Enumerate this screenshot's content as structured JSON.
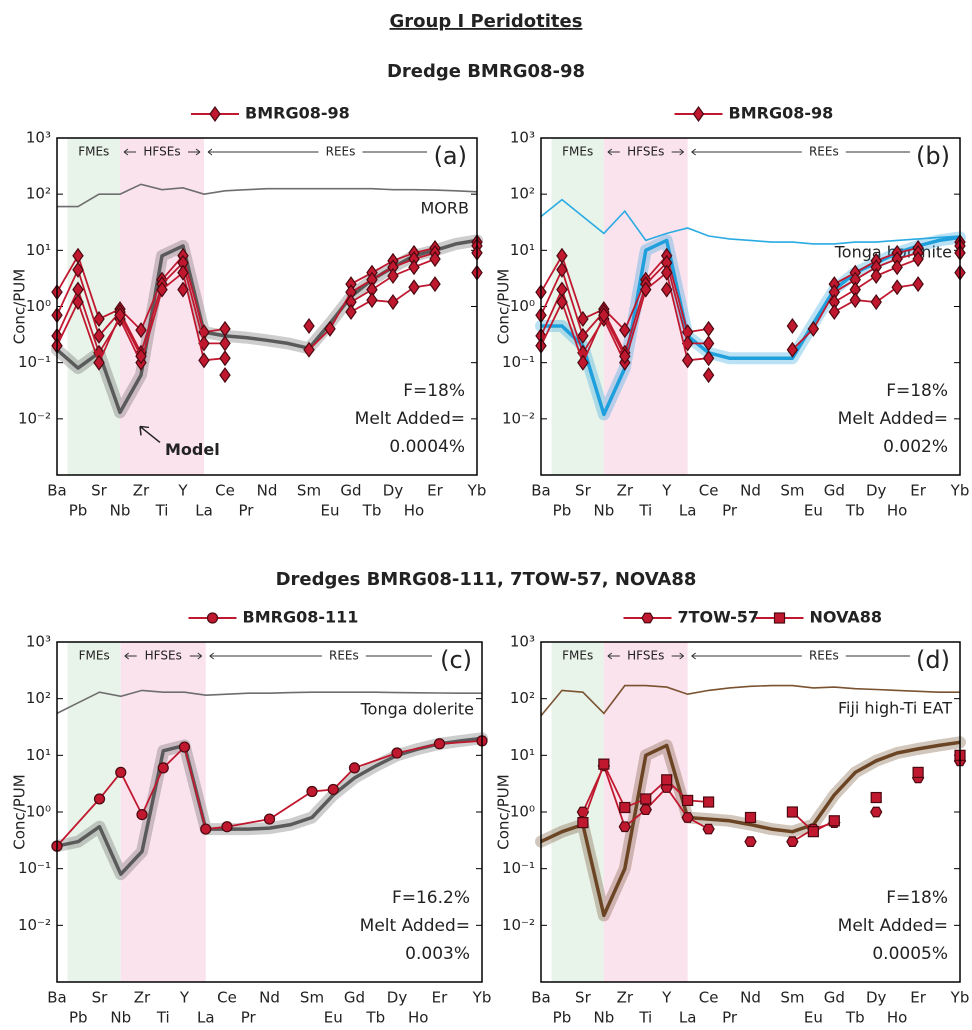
{
  "header": {
    "title": "Group I Peridotites",
    "section1": "Dredge BMRG08-98",
    "section2": "Dredges BMRG08-111, 7TOW-57, NOVA88"
  },
  "chart_data": [
    {
      "type": "line",
      "panel": "(a)",
      "y_label": "Conc/PUM",
      "log_y": true,
      "regions": [
        "FMEs",
        "HFSEs",
        "REEs"
      ],
      "categories": [
        "Ba",
        "Pb",
        "Sr",
        "Nb",
        "Zr",
        "Ti",
        "Y",
        "La",
        "Ce",
        "Pr",
        "Nd",
        null,
        "Sm",
        "Eu",
        "Gd",
        "Tb",
        "Dy",
        "Ho",
        "Er",
        null,
        "Yb"
      ],
      "ylim": [
        0.001,
        1000
      ],
      "yticks": [
        {
          "value": 1000,
          "label": "10³"
        },
        {
          "value": 100,
          "label": "10²"
        },
        {
          "value": 10,
          "label": "10¹"
        },
        {
          "value": 1,
          "label": "10⁰"
        },
        {
          "value": 0.1,
          "label": "10⁻¹"
        },
        {
          "value": 0.01,
          "label": "10⁻²"
        }
      ],
      "annotations": [
        "F=18%",
        "Melt Added=",
        "0.0004%"
      ],
      "series": [
        {
          "name": "MORB",
          "style": "line",
          "color": "#6e6e6e",
          "values": [
            60,
            60,
            100,
            100,
            150,
            120,
            130,
            100,
            115,
            120,
            125,
            125,
            125,
            125,
            125,
            125,
            120,
            120,
            118,
            115,
            110
          ]
        },
        {
          "name": "Model",
          "style": "band",
          "color": "#5a5a5a",
          "values": [
            0.17,
            0.08,
            0.15,
            0.013,
            0.06,
            8,
            12,
            0.35,
            0.3,
            0.28,
            0.25,
            0.22,
            0.18,
            0.5,
            1.5,
            3,
            5,
            8,
            10,
            13,
            15
          ]
        },
        {
          "name": "BMRG08-98",
          "style": "marker",
          "marker": "diamond",
          "color": "#c0192f",
          "values": [
            1.8,
            8,
            0.6,
            0.9,
            0.38,
            3,
            8,
            0.35,
            0.4,
            null,
            null,
            null,
            0.45,
            null,
            2.5,
            4,
            6.5,
            9,
            11,
            null,
            14
          ]
        },
        {
          "style": "marker",
          "marker": "diamond",
          "color": "#c0192f",
          "values": [
            0.7,
            4.5,
            0.3,
            0.8,
            0.15,
            2.5,
            6,
            0.22,
            0.22,
            null,
            null,
            null,
            0.17,
            0.4,
            1.8,
            3,
            5,
            7,
            9,
            null,
            12
          ]
        },
        {
          "style": "marker",
          "marker": "diamond",
          "color": "#c0192f",
          "values": [
            0.3,
            2,
            0.15,
            0.6,
            0.1,
            2,
            4,
            0.11,
            0.12,
            null,
            null,
            null,
            null,
            null,
            1.2,
            2,
            3.5,
            5,
            7,
            null,
            9
          ]
        },
        {
          "style": "marker",
          "marker": "diamond",
          "color": "#c0192f",
          "values": [
            0.2,
            1.2,
            0.1,
            0.7,
            0.13,
            null,
            2,
            null,
            0.06,
            null,
            null,
            null,
            null,
            null,
            0.8,
            1.3,
            1.2,
            2.2,
            2.5,
            null,
            4
          ]
        }
      ]
    },
    {
      "type": "line",
      "panel": "(b)",
      "y_label": "Conc/PUM",
      "log_y": true,
      "regions": [
        "FMEs",
        "HFSEs",
        "REEs"
      ],
      "categories": [
        "Ba",
        "Pb",
        "Sr",
        "Nb",
        "Zr",
        "Ti",
        "Y",
        "La",
        "Ce",
        "Pr",
        "Nd",
        null,
        "Sm",
        "Eu",
        "Gd",
        "Tb",
        "Dy",
        "Ho",
        "Er",
        null,
        "Yb"
      ],
      "ylim": [
        0.001,
        1000
      ],
      "yticks": [
        {
          "value": 1000,
          "label": "10³"
        },
        {
          "value": 100,
          "label": "10²"
        },
        {
          "value": 10,
          "label": "10¹"
        },
        {
          "value": 1,
          "label": "10⁰"
        },
        {
          "value": 0.1,
          "label": "10⁻¹"
        },
        {
          "value": 0.01,
          "label": "10⁻²"
        }
      ],
      "annotations": [
        "F=18%",
        "Melt Added=",
        "0.002%"
      ],
      "series": [
        {
          "name": "Tonga boninite",
          "style": "line",
          "color": "#29abe2",
          "values": [
            40,
            80,
            40,
            20,
            50,
            15,
            20,
            25,
            18,
            16,
            15,
            14,
            14,
            13,
            13,
            14,
            14,
            15,
            16,
            17,
            18
          ]
        },
        {
          "style": "band",
          "color": "#1fa0dc",
          "values": [
            0.45,
            0.45,
            0.2,
            0.012,
            0.08,
            10,
            15,
            0.3,
            0.15,
            0.12,
            0.12,
            0.12,
            0.12,
            0.5,
            2,
            4,
            6,
            9,
            12,
            15,
            17
          ]
        },
        {
          "name": "BMRG08-98",
          "style": "marker",
          "marker": "diamond",
          "color": "#c0192f",
          "values": [
            1.8,
            8,
            0.6,
            0.9,
            0.38,
            3,
            8,
            0.35,
            0.4,
            null,
            null,
            null,
            0.45,
            null,
            2.5,
            4,
            6.5,
            9,
            11,
            null,
            14
          ]
        },
        {
          "style": "marker",
          "marker": "diamond",
          "color": "#c0192f",
          "values": [
            0.7,
            4.5,
            0.3,
            0.8,
            0.15,
            2.5,
            6,
            0.22,
            0.22,
            null,
            null,
            null,
            0.17,
            0.4,
            1.8,
            3,
            5,
            7,
            9,
            null,
            12
          ]
        },
        {
          "style": "marker",
          "marker": "diamond",
          "color": "#c0192f",
          "values": [
            0.3,
            2,
            0.15,
            0.6,
            0.1,
            2,
            4,
            0.11,
            0.12,
            null,
            null,
            null,
            null,
            null,
            1.2,
            2,
            3.5,
            5,
            7,
            null,
            9
          ]
        },
        {
          "style": "marker",
          "marker": "diamond",
          "color": "#c0192f",
          "values": [
            0.2,
            1.2,
            0.1,
            0.7,
            0.13,
            null,
            2,
            null,
            0.06,
            null,
            null,
            null,
            null,
            null,
            0.8,
            1.3,
            1.2,
            2.2,
            2.5,
            null,
            4
          ]
        }
      ]
    },
    {
      "type": "line",
      "panel": "(c)",
      "y_label": "Conc/PUM",
      "log_y": true,
      "regions": [
        "FMEs",
        "HFSEs",
        "REEs"
      ],
      "categories": [
        "Ba",
        "Pb",
        "Sr",
        "Nb",
        "Zr",
        "Ti",
        "Y",
        "La",
        "Ce",
        "Pr",
        "Nd",
        null,
        "Sm",
        "Eu",
        "Gd",
        "Tb",
        "Dy",
        "Ho",
        "Er",
        null,
        "Yb"
      ],
      "ylim": [
        0.001,
        1000
      ],
      "yticks": [
        {
          "value": 1000,
          "label": "10³"
        },
        {
          "value": 100,
          "label": "10²"
        },
        {
          "value": 10,
          "label": "10¹"
        },
        {
          "value": 1,
          "label": "10⁰"
        },
        {
          "value": 0.1,
          "label": "10⁻¹"
        },
        {
          "value": 0.01,
          "label": "10⁻²"
        }
      ],
      "annotations": [
        "F=16.2%",
        "Melt Added=",
        "0.003%"
      ],
      "series": [
        {
          "name": "Tonga dolerite",
          "style": "line",
          "color": "#6e6e6e",
          "values": [
            55,
            85,
            130,
            110,
            140,
            130,
            130,
            115,
            120,
            125,
            125,
            128,
            130,
            130,
            130,
            130,
            128,
            127,
            126,
            125,
            125
          ]
        },
        {
          "style": "band",
          "color": "#5a5a5a",
          "values": [
            0.25,
            0.3,
            0.55,
            0.08,
            0.2,
            12,
            15,
            0.5,
            0.5,
            0.5,
            0.52,
            0.6,
            0.8,
            2,
            4,
            6.5,
            10,
            13,
            16,
            18,
            20
          ]
        },
        {
          "name": "BMRG08-111",
          "style": "marker",
          "marker": "circle",
          "color": "#c0192f",
          "connect_gaps": true,
          "values": [
            0.25,
            null,
            1.7,
            5,
            0.9,
            6,
            14,
            0.5,
            0.55,
            null,
            0.75,
            null,
            2.3,
            2.5,
            6,
            null,
            11,
            null,
            16,
            null,
            18
          ]
        }
      ]
    },
    {
      "type": "line",
      "panel": "(d)",
      "y_label": "Conc/PUM",
      "log_y": true,
      "regions": [
        "FMEs",
        "HFSEs",
        "REEs"
      ],
      "categories": [
        "Ba",
        "Pb",
        "Sr",
        "Nb",
        "Zr",
        "Ti",
        "Y",
        "La",
        "Ce",
        "Pr",
        "Nd",
        null,
        "Sm",
        "Eu",
        "Gd",
        "Tb",
        "Dy",
        "Ho",
        "Er",
        null,
        "Yb"
      ],
      "ylim": [
        0.001,
        1000
      ],
      "yticks": [
        {
          "value": 1000,
          "label": "10³"
        },
        {
          "value": 100,
          "label": "10²"
        },
        {
          "value": 10,
          "label": "10¹"
        },
        {
          "value": 1,
          "label": "10⁰"
        },
        {
          "value": 0.1,
          "label": "10⁻¹"
        },
        {
          "value": 0.01,
          "label": "10⁻²"
        }
      ],
      "annotations": [
        "F=18%",
        "Melt Added=",
        "0.0005%"
      ],
      "series": [
        {
          "name": "Fiji high-Ti EAT",
          "style": "line",
          "color": "#7b5230",
          "values": [
            50,
            140,
            130,
            55,
            170,
            170,
            160,
            120,
            140,
            155,
            165,
            170,
            170,
            155,
            160,
            150,
            145,
            140,
            135,
            130,
            130
          ]
        },
        {
          "style": "band",
          "color": "#6b4423",
          "values": [
            0.3,
            0.45,
            0.6,
            0.015,
            0.1,
            10,
            15,
            0.8,
            0.75,
            0.7,
            0.6,
            0.5,
            0.45,
            0.6,
            2,
            5,
            8,
            11,
            13,
            15,
            17
          ]
        },
        {
          "name": "7TOW-57",
          "style": "marker",
          "marker": "hexagon",
          "color": "#c0192f",
          "values": [
            null,
            null,
            1.0,
            6.5,
            0.55,
            1.1,
            2.7,
            0.8,
            0.5,
            null,
            0.3,
            null,
            0.3,
            0.5,
            0.65,
            null,
            1.0,
            null,
            4,
            null,
            8
          ]
        },
        {
          "name": "NOVA88",
          "style": "marker",
          "marker": "square",
          "color": "#c0192f",
          "values": [
            null,
            null,
            0.65,
            7,
            1.2,
            1.7,
            3.7,
            1.6,
            1.5,
            null,
            0.8,
            null,
            1.0,
            0.45,
            0.7,
            null,
            1.8,
            null,
            5,
            null,
            10
          ]
        }
      ]
    }
  ]
}
